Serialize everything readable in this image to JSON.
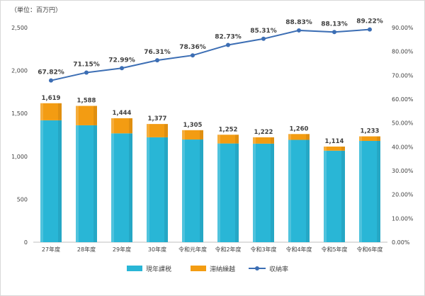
{
  "chart_data": {
    "type": "bar",
    "unit_note": "（単位：百万円）",
    "categories": [
      "27年度",
      "28年度",
      "29年度",
      "30年度",
      "令和元年度",
      "令和2年度",
      "令和3年度",
      "令和4年度",
      "令和5年度",
      "令和6年度"
    ],
    "series": [
      {
        "name": "現年課税",
        "values": [
          1420,
          1362,
          1268,
          1222,
          1196,
          1150,
          1148,
          1192,
          1066,
          1180
        ],
        "color": "#29b6d6"
      },
      {
        "name": "滞納繰越",
        "values": [
          199,
          226,
          176,
          155,
          109,
          102,
          74,
          68,
          48,
          53
        ],
        "color": "#f39c12"
      }
    ],
    "totals": [
      1619,
      1588,
      1444,
      1377,
      1305,
      1252,
      1222,
      1260,
      1114,
      1233
    ],
    "total_labels": [
      "1,619",
      "1,588",
      "1,444",
      "1,377",
      "1,305",
      "1,252",
      "1,222",
      "1,260",
      "1,114",
      "1,233"
    ],
    "line_series": {
      "name": "収納率",
      "values": [
        67.82,
        71.15,
        72.99,
        76.31,
        78.36,
        82.73,
        85.31,
        88.83,
        88.13,
        89.22
      ],
      "labels": [
        "67.82%",
        "71.15%",
        "72.99%",
        "76.31%",
        "78.36%",
        "82.73%",
        "85.31%",
        "88.83%",
        "88.13%",
        "89.22%"
      ],
      "color": "#3c6eb4"
    },
    "ylim": [
      0,
      2500
    ],
    "y_ticks": [
      "0",
      "500",
      "1,000",
      "1,500",
      "2,000",
      "2,500"
    ],
    "y2lim": [
      0,
      90
    ],
    "y2_ticks": [
      "0.00%",
      "10.00%",
      "20.00%",
      "30.00%",
      "40.00%",
      "50.00%",
      "60.00%",
      "70.00%",
      "80.00%",
      "90.00%"
    ],
    "grid": false,
    "legend_position": "bottom"
  }
}
